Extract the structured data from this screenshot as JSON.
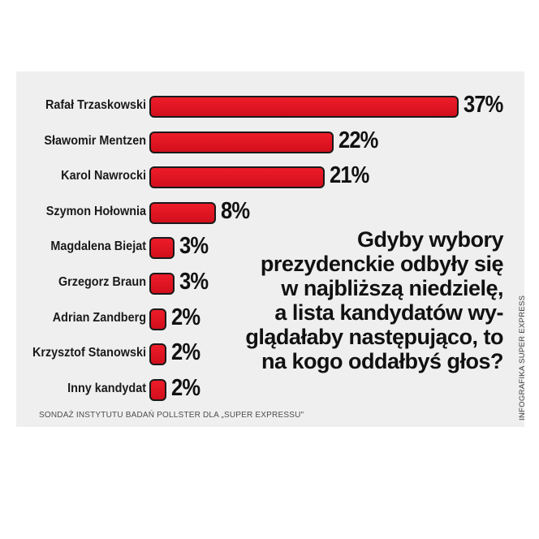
{
  "chart_data": {
    "type": "bar",
    "orientation": "horizontal",
    "title": "Gdyby wybory prezydenckie odbyły się w najbliższą niedzielę, a lista kandydatów wyglądałaby następująco, to na kogo oddałbyś głos?",
    "title_lines": [
      "Gdyby wybory",
      "prezydenckie odbyły się",
      "w najbliższą niedzielę,",
      "a lista kandydatów wy-",
      "glądałaby następująco, to",
      "na kogo oddałbyś głos?"
    ],
    "categories": [
      "Rafał Trzaskowski",
      "Sławomir Mentzen",
      "Karol Nawrocki",
      "Szymon Hołownia",
      "Magdalena Biejat",
      "Grzegorz Braun",
      "Adrian Zandberg",
      "Krzysztof Stanowski",
      "Inny kandydat"
    ],
    "values": [
      37,
      22,
      21,
      8,
      3,
      3,
      2,
      2,
      2
    ],
    "value_labels": [
      "37%",
      "22%",
      "21%",
      "8%",
      "3%",
      "3%",
      "2%",
      "2%",
      "2%"
    ],
    "unit": "%",
    "bar_color": "#e31b23",
    "background_color": "#efefef",
    "grid": false,
    "source": "SONDAŻ INSTYTUTU BADAŃ POLLSTER DLA „SUPER EXPRESSU\"",
    "credit": "INFOGRAFIKA SUPER EXPRESS"
  }
}
